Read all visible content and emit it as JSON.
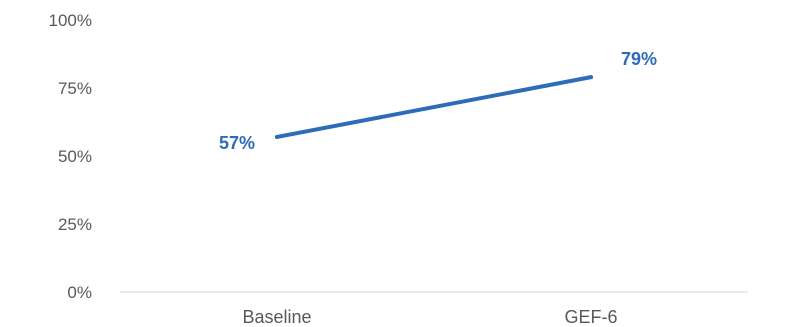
{
  "chart_data": {
    "type": "line",
    "title": "",
    "xlabel": "",
    "ylabel": "",
    "categories": [
      "Baseline",
      "GEF-6"
    ],
    "series": [
      {
        "values": [
          57,
          79
        ],
        "data_labels": [
          "57%",
          "79%"
        ],
        "color": "#2e6bb8"
      }
    ],
    "ylim": [
      0,
      100
    ],
    "yticks": [
      0,
      25,
      50,
      75,
      100
    ],
    "ytick_labels": [
      "0%",
      "25%",
      "50%",
      "75%",
      "100%"
    ],
    "grid": false,
    "legend": "none",
    "axis_color": "#d9d9d9"
  }
}
